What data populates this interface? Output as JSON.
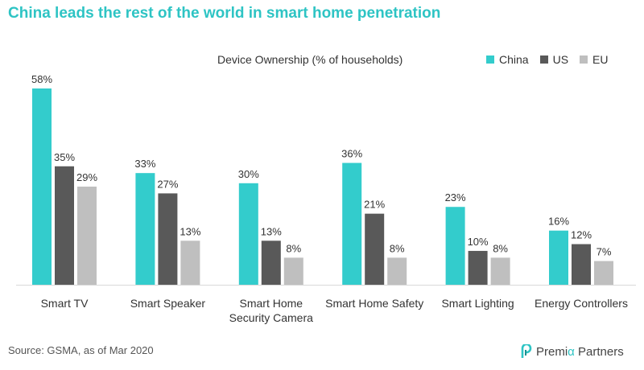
{
  "title": "China leads the rest of the world in smart home penetration",
  "source": "Source: GSMA, as of Mar 2020",
  "logo": {
    "text_before": "Premi",
    "text_accent": "α",
    "text_after": " Partners"
  },
  "chart_data": {
    "type": "bar",
    "title": "Device Ownership (% of households)",
    "xlabel": "",
    "ylabel": "",
    "ylim": [
      0,
      60
    ],
    "grid": false,
    "legend_position": "top-right",
    "categories": [
      [
        "Smart TV"
      ],
      [
        "Smart Speaker"
      ],
      [
        "Smart Home",
        "Security Camera"
      ],
      [
        "Smart Home Safety"
      ],
      [
        "Smart Lighting"
      ],
      [
        "Energy Controllers"
      ]
    ],
    "series": [
      {
        "name": "China",
        "color": "#33cccc",
        "values": [
          58,
          33,
          30,
          36,
          23,
          16
        ],
        "labels": [
          "58%",
          "33%",
          "30%",
          "36%",
          "23%",
          "16%"
        ]
      },
      {
        "name": "US",
        "color": "#595959",
        "values": [
          35,
          27,
          13,
          21,
          10,
          12
        ],
        "labels": [
          "35%",
          "27%",
          "13%",
          "21%",
          "10%",
          "12%"
        ]
      },
      {
        "name": "EU",
        "color": "#bfbfbf",
        "values": [
          29,
          13,
          8,
          8,
          8,
          7
        ],
        "labels": [
          "29%",
          "13%",
          "8%",
          "8%",
          "8%",
          "7%"
        ]
      }
    ]
  }
}
